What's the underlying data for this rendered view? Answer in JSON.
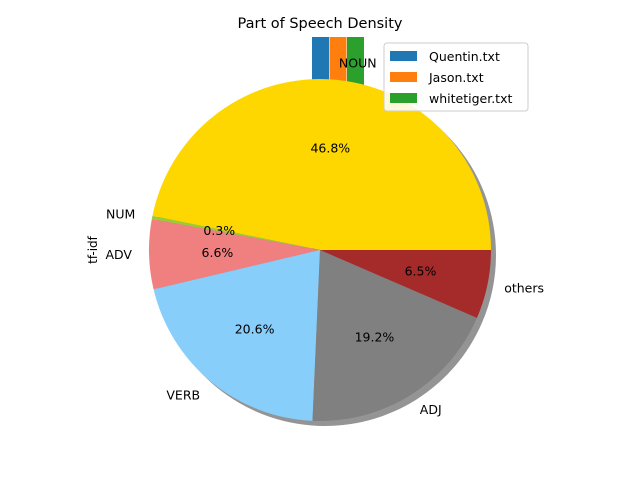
{
  "chart_data": {
    "type": "pie",
    "title": "Part of Speech Density",
    "ylabel": "tf-idf",
    "slices": [
      {
        "label": "NOUN",
        "value": 46.8,
        "pct_label": "46.8%",
        "color": "#FFD700"
      },
      {
        "label": "NUM",
        "value": 0.3,
        "pct_label": "0.3%",
        "color": "#9ACD32"
      },
      {
        "label": "ADV",
        "value": 6.6,
        "pct_label": "6.6%",
        "color": "#F08080"
      },
      {
        "label": "VERB",
        "value": 20.6,
        "pct_label": "20.6%",
        "color": "#87CEFA"
      },
      {
        "label": "ADJ",
        "value": 19.2,
        "pct_label": "19.2%",
        "color": "#808080"
      },
      {
        "label": "others",
        "value": 6.5,
        "pct_label": "6.5%",
        "color": "#A52A2A"
      }
    ],
    "start_angle_deg": 0,
    "shadow": true,
    "bars": [
      {
        "name": "Quentin.txt",
        "color": "#1F77B4"
      },
      {
        "name": "Jason.txt",
        "color": "#FF7F0E"
      },
      {
        "name": "whitetiger.txt",
        "color": "#2CA02C"
      }
    ],
    "legend": {
      "placement": "top-right",
      "entries": [
        {
          "name": "Quentin.txt",
          "color": "#1F77B4"
        },
        {
          "name": "Jason.txt",
          "color": "#FF7F0E"
        },
        {
          "name": "whitetiger.txt",
          "color": "#2CA02C"
        }
      ]
    }
  }
}
